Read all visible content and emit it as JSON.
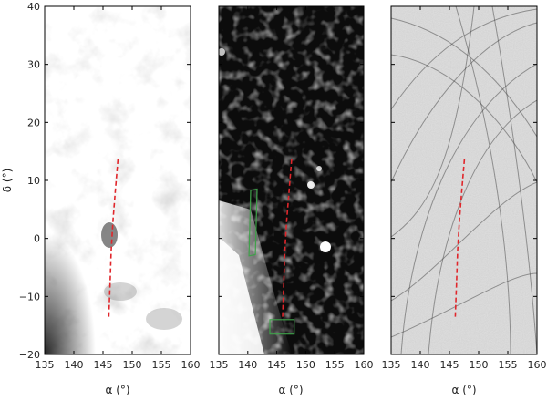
{
  "colors": {
    "stream_track": "#e0262b",
    "box_outline": "#3fa14a",
    "frame": "#000000"
  },
  "labels": {
    "ylabel_symbol": "δ",
    "xlabel_symbol": "α",
    "unit": "(°)"
  },
  "chart_data": [
    {
      "type": "heatmap",
      "panel": "left",
      "xlim": [
        135,
        160
      ],
      "ylim": [
        -20,
        40
      ],
      "xticks": [
        135,
        140,
        145,
        150,
        155,
        160
      ],
      "yticks": [
        -20,
        -10,
        0,
        10,
        20,
        30,
        40
      ],
      "xlabel": "α (°)",
      "ylabel": "δ (°)",
      "colormap": "grayscale (light background, dark dust patches)",
      "overlays": [
        {
          "kind": "dashed_track",
          "color": "#e0262b",
          "points": [
            [
              146.0,
              -13.5
            ],
            [
              146.2,
              -8
            ],
            [
              146.4,
              -2
            ],
            [
              146.7,
              3
            ],
            [
              147.1,
              8
            ],
            [
              147.6,
              14
            ]
          ]
        }
      ]
    },
    {
      "type": "heatmap",
      "panel": "middle",
      "xlim": [
        135,
        160
      ],
      "ylim": [
        -20,
        40
      ],
      "xticks": [
        135,
        140,
        145,
        150,
        155,
        160
      ],
      "yticks": [
        -20,
        -10,
        0,
        10,
        20,
        30,
        40
      ],
      "xlabel": "α (°)",
      "colormap": "grayscale (dark background, bright clumps)",
      "overlays": [
        {
          "kind": "dashed_track",
          "color": "#e0262b",
          "points": [
            [
              146.0,
              -13.5
            ],
            [
              146.2,
              -8
            ],
            [
              146.4,
              -2
            ],
            [
              146.7,
              3
            ],
            [
              147.1,
              8
            ],
            [
              147.6,
              14
            ]
          ]
        },
        {
          "kind": "box",
          "color": "#3fa14a",
          "corners": [
            [
              140.2,
              -3
            ],
            [
              141.3,
              -2.8
            ],
            [
              141.6,
              8.5
            ],
            [
              140.5,
              8.3
            ]
          ]
        },
        {
          "kind": "box",
          "color": "#3fa14a",
          "corners": [
            [
              143.8,
              -16.5
            ],
            [
              148.0,
              -16.5
            ],
            [
              148.0,
              -14
            ],
            [
              143.8,
              -14
            ]
          ]
        }
      ]
    },
    {
      "type": "heatmap",
      "panel": "right",
      "xlim": [
        135,
        160
      ],
      "ylim": [
        -20,
        40
      ],
      "xticks": [
        135,
        140,
        145,
        150,
        155,
        160
      ],
      "yticks": [
        -20,
        -10,
        0,
        10,
        20,
        30,
        40
      ],
      "xlabel": "α (°)",
      "colormap": "grayscale (light background, dark arcs)",
      "overlays": [
        {
          "kind": "dashed_track",
          "color": "#e0262b",
          "points": [
            [
              146.0,
              -13.5
            ],
            [
              146.2,
              -8
            ],
            [
              146.4,
              -2
            ],
            [
              146.7,
              3
            ],
            [
              147.1,
              8
            ],
            [
              147.6,
              14
            ]
          ]
        }
      ]
    }
  ]
}
